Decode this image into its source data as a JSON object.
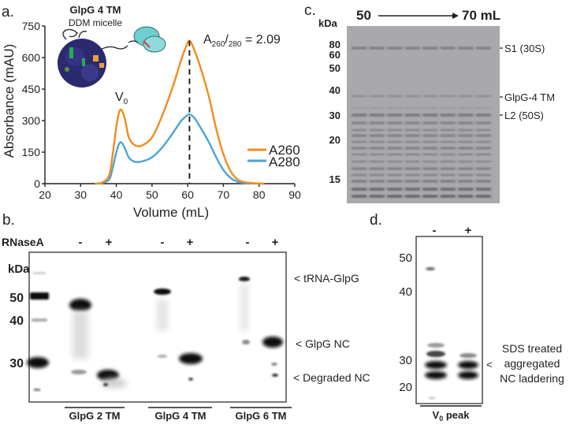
{
  "panel_a": {
    "letter": "a.",
    "inset_title": "GlpG 4 TM",
    "inset_subtitle": "DDM micelle",
    "ratio_prefix": "A",
    "ratio_sub1": "260",
    "ratio_slash": "/",
    "ratio_sub2": "280",
    "ratio_value": " = 2.09",
    "v0_label": "V",
    "v0_sub": "0",
    "colors": {
      "a260": "#f08c1e",
      "a280": "#4ba3d9"
    },
    "chart_data": {
      "type": "line",
      "xlabel": "Volume (mL)",
      "ylabel": "Absorbance (mAU)",
      "xlim": [
        20,
        90
      ],
      "ylim": [
        0,
        750
      ],
      "xticks": [
        "20",
        "30",
        "40",
        "50",
        "60",
        "70",
        "80",
        "90"
      ],
      "yticks": [
        "0",
        "150",
        "300",
        "450",
        "600",
        "750"
      ],
      "legend": [
        "A260",
        "A280"
      ],
      "legend_position": "right",
      "annotation": "dashed line at 60.5 mL (peak maximum)",
      "series": [
        {
          "name": "A260",
          "x": [
            34,
            36,
            38,
            39,
            40,
            40.8,
            41.5,
            42.5,
            43.5,
            45,
            47,
            50,
            53,
            56,
            58,
            59.5,
            60.5,
            62,
            64,
            66,
            68,
            70,
            72,
            74,
            76,
            78,
            80,
            81.5
          ],
          "y": [
            0,
            5,
            40,
            140,
            270,
            340,
            350,
            300,
            220,
            185,
            180,
            220,
            330,
            470,
            580,
            650,
            680,
            630,
            530,
            410,
            260,
            140,
            60,
            20,
            7,
            3,
            1,
            0
          ]
        },
        {
          "name": "A280",
          "x": [
            34,
            36,
            38,
            39,
            40,
            40.8,
            41.5,
            42.5,
            43.5,
            45,
            47,
            50,
            53,
            56,
            58,
            59.5,
            60.5,
            62,
            64,
            66,
            68,
            70,
            72,
            74,
            76,
            78,
            80,
            81.5
          ],
          "y": [
            0,
            3,
            20,
            75,
            150,
            190,
            195,
            165,
            125,
            105,
            105,
            125,
            175,
            245,
            295,
            320,
            330,
            310,
            255,
            195,
            125,
            65,
            28,
            9,
            3,
            1,
            0,
            0
          ]
        }
      ]
    }
  },
  "panel_b": {
    "letter": "b.",
    "rnase_label": "RNaseA",
    "kda_label": "kDa",
    "lane_signs": [
      "-",
      "+",
      "-",
      "+",
      "-",
      "+"
    ],
    "markers": [
      "50",
      "40",
      "30"
    ],
    "annotations": [
      "< tRNA-GlpG",
      "< GlpG NC",
      "< Degraded NC"
    ],
    "groups": [
      "GlpG 2 TM",
      "GlpG 4 TM",
      "GlpG 6 TM"
    ]
  },
  "panel_c": {
    "letter": "c.",
    "kda_label": "kDa",
    "range_start": "50",
    "range_end": "70 mL",
    "markers": [
      "80",
      "60",
      "50",
      "40",
      "30",
      "20",
      "15"
    ],
    "annotations": [
      "S1 (30S)",
      "GlpG-4 TM",
      "L2 (50S)"
    ]
  },
  "panel_d": {
    "letter": "d.",
    "lane_signs": [
      "-",
      "+"
    ],
    "markers": [
      "50",
      "40",
      "30",
      "20"
    ],
    "annotation_lines": [
      "SDS treated",
      "aggregated",
      "NC laddering"
    ],
    "annotation_arrow": "<",
    "footer": "V",
    "footer_sub": "0",
    "footer_rest": " peak"
  }
}
